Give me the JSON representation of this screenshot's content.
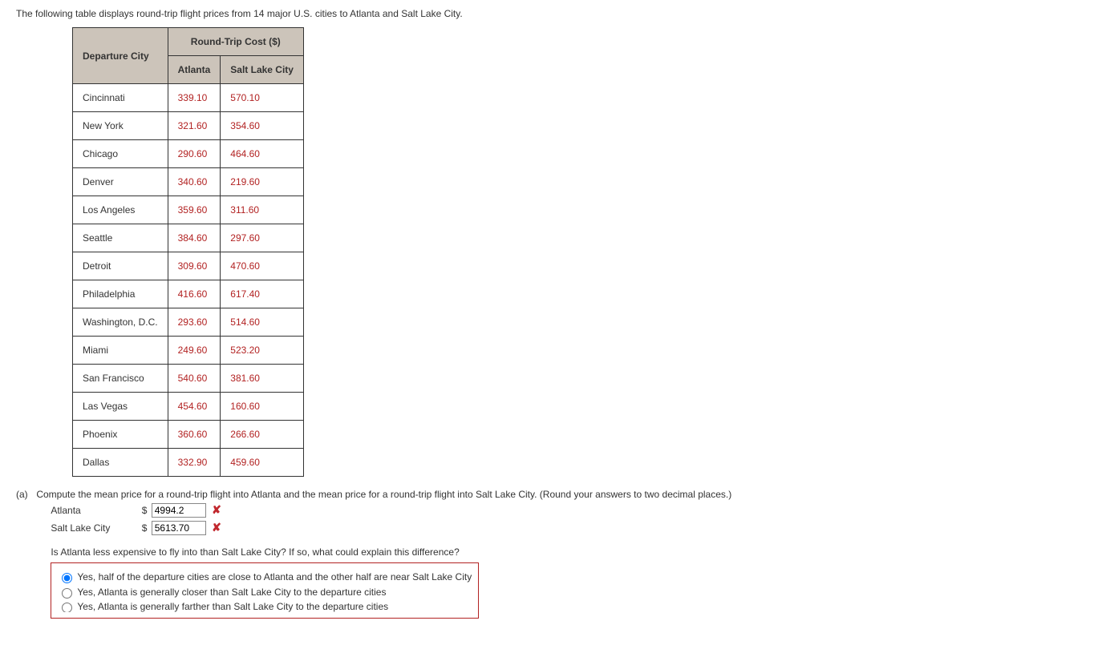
{
  "intro": "The following table displays round-trip flight prices from 14 major U.S. cities to Atlanta and Salt Lake City.",
  "table": {
    "groupHeader": "Round-Trip Cost ($)",
    "cols": [
      "Departure City",
      "Atlanta",
      "Salt Lake City"
    ],
    "rows": [
      [
        "Cincinnati",
        "339.10",
        "570.10"
      ],
      [
        "New York",
        "321.60",
        "354.60"
      ],
      [
        "Chicago",
        "290.60",
        "464.60"
      ],
      [
        "Denver",
        "340.60",
        "219.60"
      ],
      [
        "Los Angeles",
        "359.60",
        "311.60"
      ],
      [
        "Seattle",
        "384.60",
        "297.60"
      ],
      [
        "Detroit",
        "309.60",
        "470.60"
      ],
      [
        "Philadelphia",
        "416.60",
        "617.40"
      ],
      [
        "Washington, D.C.",
        "293.60",
        "514.60"
      ],
      [
        "Miami",
        "249.60",
        "523.20"
      ],
      [
        "San Francisco",
        "540.60",
        "381.60"
      ],
      [
        "Las Vegas",
        "454.60",
        "160.60"
      ],
      [
        "Phoenix",
        "360.60",
        "266.60"
      ],
      [
        "Dallas",
        "332.90",
        "459.60"
      ]
    ]
  },
  "partA": {
    "label": "(a)",
    "prompt": "Compute the mean price for a round-trip flight into Atlanta and the mean price for a round-trip flight into Salt Lake City. (Round your answers to two decimal places.)",
    "answers": {
      "atlanta": {
        "label": "Atlanta",
        "currency": "$",
        "value": "4994.2"
      },
      "slc": {
        "label": "Salt Lake City",
        "currency": "$",
        "value": "5613.70"
      }
    },
    "subQuestion": "Is Atlanta less expensive to fly into than Salt Lake City? If so, what could explain this difference?",
    "options": [
      "Yes, half of the departure cities are close to Atlanta and the other half are near Salt Lake City",
      "Yes, Atlanta is generally closer than Salt Lake City to the departure cities",
      "Yes, Atlanta is generally farther than Salt Lake City to the departure cities"
    ],
    "selectedOption": 0
  },
  "icons": {
    "wrong": "✘"
  },
  "colors": {
    "numText": "#b22222",
    "headerBg": "#ccc4ba",
    "mcBorder": "#b22222",
    "wrongIcon": "#c1272d"
  }
}
